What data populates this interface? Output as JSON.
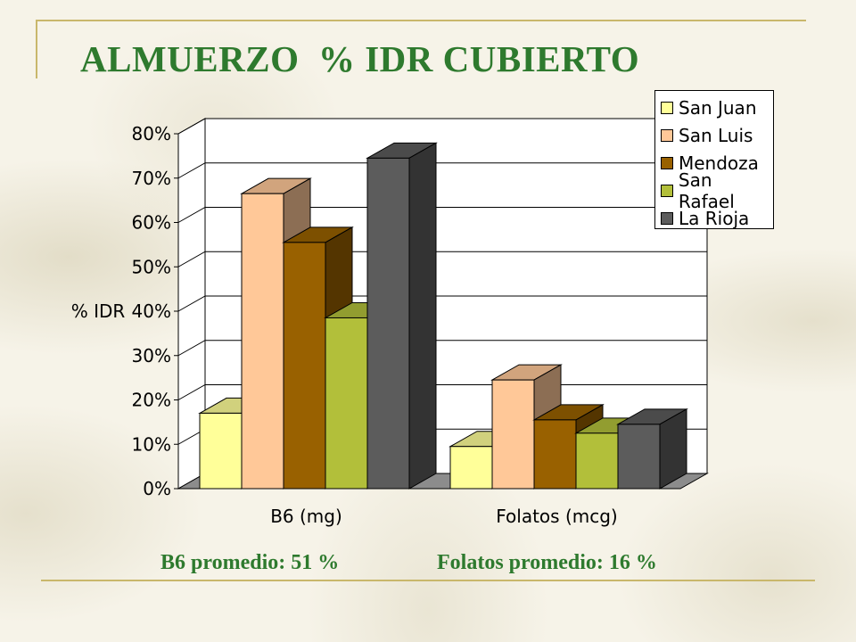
{
  "slide": {
    "title": "ALMUERZO  % IDR CUBIERTO",
    "footer_left": "B6 promedio: 51 %",
    "footer_right": "Folatos promedio: 16 %"
  },
  "chart_data": {
    "type": "bar",
    "title": "",
    "xlabel": "",
    "ylabel": "% IDR",
    "ylim": [
      0,
      80
    ],
    "yticks": [
      "0%",
      "10%",
      "20%",
      "30%",
      "40%",
      "50%",
      "60%",
      "70%",
      "80%"
    ],
    "grid": true,
    "legend_position": "top-right",
    "categories": [
      "B6 (mg)",
      "Folatos (mcg)"
    ],
    "series": [
      {
        "name": "San Juan",
        "values": [
          17,
          9.5
        ],
        "color": "#ffff99"
      },
      {
        "name": "San Luis",
        "values": [
          66.5,
          24.5
        ],
        "color": "#ffc898"
      },
      {
        "name": "Mendoza",
        "values": [
          55.5,
          15.5
        ],
        "color": "#996100"
      },
      {
        "name": "San Rafael",
        "values": [
          38.5,
          12.5
        ],
        "color": "#b2bf3a"
      },
      {
        "name": "La Rioja",
        "values": [
          74.5,
          14.5
        ],
        "color": "#5c5c5c"
      }
    ]
  }
}
